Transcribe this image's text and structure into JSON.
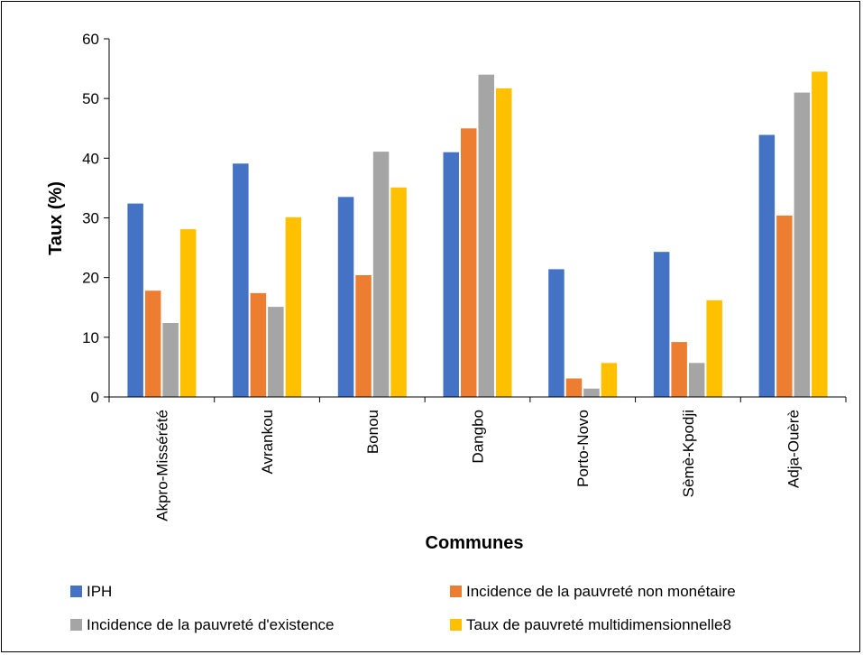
{
  "chart_data": {
    "type": "bar",
    "xlabel": "Communes",
    "ylabel": "Taux (%)",
    "ylim": [
      0,
      60
    ],
    "yticks": [
      0,
      10,
      20,
      30,
      40,
      50,
      60
    ],
    "grid": false,
    "legend_position": "bottom",
    "categories": [
      "Akpro-Missérété",
      "Avrankou",
      "Bonou",
      "Dangbo",
      "Porto-Novo",
      "Sèmè-Kpodji",
      "Adja-Ouèrè"
    ],
    "series": [
      {
        "name": "IPH",
        "color": "#4472C4",
        "values": [
          32.4,
          39.1,
          33.5,
          41.0,
          21.4,
          24.3,
          43.9
        ]
      },
      {
        "name": "Incidence de la pauvreté non monétaire",
        "color": "#ED7D31",
        "values": [
          17.8,
          17.4,
          20.4,
          45.0,
          3.1,
          9.2,
          30.4
        ]
      },
      {
        "name": "Incidence de la pauvreté d'existence",
        "color": "#A5A5A5",
        "values": [
          12.4,
          15.1,
          41.1,
          54.0,
          1.4,
          5.7,
          51.0
        ]
      },
      {
        "name": "Taux de pauvreté multidimensionnelle8",
        "color": "#FFC000",
        "values": [
          28.1,
          30.1,
          35.1,
          51.7,
          5.7,
          16.2,
          54.5
        ]
      }
    ]
  }
}
